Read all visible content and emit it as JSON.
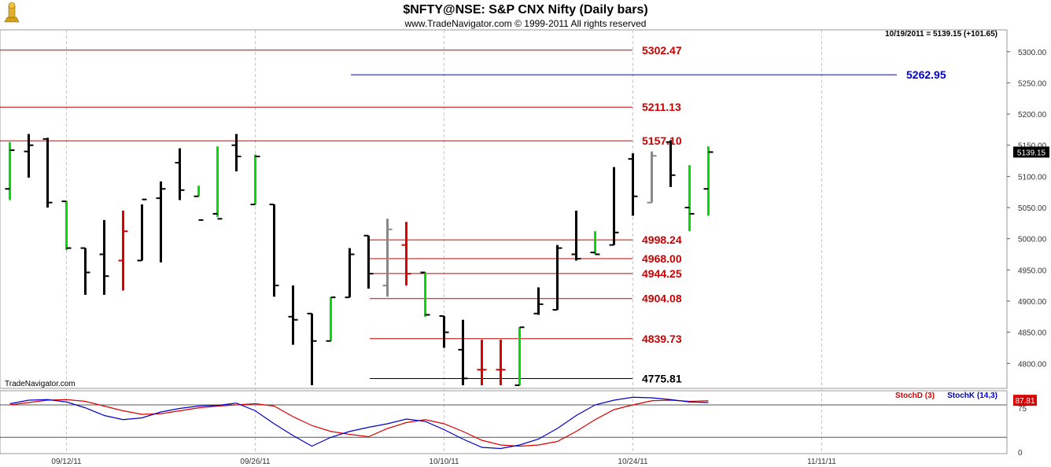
{
  "header": {
    "title": "$NFTY@NSE:  S&P CNX Nifty  (Daily bars)",
    "subtitle": "www.TradeNavigator.com © 1999-2011 All rights reserved",
    "quote": "10/19/2011 = 5139.15 (+101.65)",
    "watermark": "TradeNavigator.com"
  },
  "colors": {
    "up_bar": "#00dd00",
    "down_bar": "#000000",
    "red_bar": "#dd0000",
    "gray_bar": "#888888",
    "resistance_line": "#cc0000",
    "blue_line": "#0000cc",
    "stochD": "#dd0000",
    "stochK": "#0000cc",
    "last_price_box": "#000000",
    "stoch_value_box": "#dd0000"
  },
  "chart_data": [
    {
      "type": "ohlc",
      "name": "price",
      "price_axis": {
        "ticks": [
          "5300.00",
          "5250.00",
          "5200.00",
          "5150.00",
          "5100.00",
          "5050.00",
          "5000.00",
          "4950.00",
          "4900.00",
          "4850.00",
          "4800.00"
        ],
        "ylim": [
          4760,
          5335
        ]
      },
      "date_labels": [
        {
          "idx": 3,
          "label": "09/12/11"
        },
        {
          "idx": 13,
          "label": "09/26/11"
        },
        {
          "idx": 23,
          "label": "10/10/11"
        },
        {
          "idx": 33,
          "label": "10/24/11"
        },
        {
          "idx": 43,
          "label": "11/11/11"
        }
      ],
      "last_price_label": "5139.15",
      "bars": [
        {
          "o": 5080,
          "h": 5155,
          "l": 5062,
          "c": 5142,
          "col": "up"
        },
        {
          "o": 5140,
          "h": 5168,
          "l": 5098,
          "c": 5150,
          "col": "black"
        },
        {
          "o": 5160,
          "h": 5162,
          "l": 5050,
          "c": 5058,
          "col": "black"
        },
        {
          "o": 5060,
          "h": 5060,
          "l": 4982,
          "c": 4985,
          "col": "up"
        },
        {
          "o": 4985,
          "h": 4985,
          "l": 4910,
          "c": 4946,
          "col": "black"
        },
        {
          "o": 4975,
          "h": 5030,
          "l": 4910,
          "c": 4940,
          "col": "black"
        },
        {
          "o": 4965,
          "h": 5045,
          "l": 4917,
          "c": 5012,
          "col": "red"
        },
        {
          "o": 4965,
          "h": 5055,
          "l": 4965,
          "c": 5063,
          "col": "black"
        },
        {
          "o": 5065,
          "h": 5092,
          "l": 4962,
          "c": 5080,
          "col": "black"
        },
        {
          "o": 5122,
          "h": 5145,
          "l": 5062,
          "c": 5078,
          "col": "black"
        },
        {
          "o": 5068,
          "h": 5085,
          "l": 5068,
          "c": 5030,
          "col": "up"
        },
        {
          "o": 5040,
          "h": 5148,
          "l": 5035,
          "c": 5032,
          "col": "up"
        },
        {
          "o": 5150,
          "h": 5168,
          "l": 5108,
          "c": 5132,
          "col": "black"
        },
        {
          "o": 5055,
          "h": 5135,
          "l": 5055,
          "c": 5132,
          "col": "up"
        },
        {
          "o": 5055,
          "h": 5055,
          "l": 4907,
          "c": 4925,
          "col": "black"
        },
        {
          "o": 4875,
          "h": 4925,
          "l": 4830,
          "c": 4870,
          "col": "black"
        },
        {
          "o": 4880,
          "h": 4880,
          "l": 4765,
          "c": 4836,
          "col": "black"
        },
        {
          "o": 4836,
          "h": 4906,
          "l": 4836,
          "c": 4906,
          "col": "up"
        },
        {
          "o": 4906,
          "h": 4985,
          "l": 4906,
          "c": 4975,
          "col": "black"
        },
        {
          "o": 5005,
          "h": 5005,
          "l": 4920,
          "c": 4944,
          "col": "black"
        },
        {
          "o": 4925,
          "h": 5032,
          "l": 4907,
          "c": 5015,
          "col": "gray"
        },
        {
          "o": 4990,
          "h": 5027,
          "l": 4925,
          "c": 4944,
          "col": "red"
        },
        {
          "o": 4946,
          "h": 4946,
          "l": 4875,
          "c": 4878,
          "col": "up"
        },
        {
          "o": 4876,
          "h": 4876,
          "l": 4825,
          "c": 4850,
          "col": "black"
        },
        {
          "o": 4822,
          "h": 4870,
          "l": 4765,
          "c": 4776,
          "col": "black"
        },
        {
          "o": 4790,
          "h": 4838,
          "l": 4765,
          "c": 4790,
          "col": "red"
        },
        {
          "o": 4790,
          "h": 4838,
          "l": 4765,
          "c": 4790,
          "col": "red"
        },
        {
          "o": 4765,
          "h": 4858,
          "l": 4765,
          "c": 4858,
          "col": "up"
        },
        {
          "o": 4880,
          "h": 4922,
          "l": 4878,
          "c": 4895,
          "col": "black"
        },
        {
          "o": 4886,
          "h": 4990,
          "l": 4886,
          "c": 4985,
          "col": "black"
        },
        {
          "o": 4975,
          "h": 5045,
          "l": 4965,
          "c": 4968,
          "col": "black"
        },
        {
          "o": 4978,
          "h": 5012,
          "l": 4975,
          "c": 4975,
          "col": "up"
        },
        {
          "o": 4990,
          "h": 5115,
          "l": 4990,
          "c": 5010,
          "col": "black"
        },
        {
          "o": 5128,
          "h": 5137,
          "l": 5037,
          "c": 5068,
          "col": "black"
        },
        {
          "o": 5058,
          "h": 5140,
          "l": 5058,
          "c": 5133,
          "col": "gray"
        },
        {
          "o": 5155,
          "h": 5158,
          "l": 5083,
          "c": 5102,
          "col": "black"
        },
        {
          "o": 5050,
          "h": 5118,
          "l": 5012,
          "c": 5040,
          "col": "up"
        },
        {
          "o": 5080,
          "h": 5148,
          "l": 5037,
          "c": 5139,
          "col": "up"
        }
      ],
      "levels": [
        {
          "value": 5302.47,
          "label": "5302.47",
          "color": "red",
          "span": "full"
        },
        {
          "value": 5262.95,
          "label": "5262.95",
          "color": "blue",
          "span": "partial"
        },
        {
          "value": 5211.13,
          "label": "5211.13",
          "color": "red",
          "span": "full"
        },
        {
          "value": 5157.1,
          "label": "5157.10",
          "color": "red",
          "span": "full"
        },
        {
          "value": 4998.24,
          "label": "4998.24",
          "color": "red",
          "span": "right"
        },
        {
          "value": 4968.0,
          "label": "4968.00",
          "color": "red",
          "span": "right"
        },
        {
          "value": 4944.25,
          "label": "4944.25",
          "color": "red",
          "span": "right"
        },
        {
          "value": 4904.08,
          "label": "4904.08",
          "color": "red",
          "span": "right"
        },
        {
          "value": 4839.73,
          "label": "4839.73",
          "color": "red",
          "span": "right"
        },
        {
          "value": 4775.81,
          "label": "4775.81",
          "color": "black",
          "span": "short"
        }
      ]
    },
    {
      "type": "line",
      "name": "stochastic",
      "ylim": [
        0,
        100
      ],
      "ticks": [
        "75",
        "0"
      ],
      "last_value_label": "87.81",
      "reference_lines": [
        25,
        80
      ],
      "legend": [
        "StochD (3)",
        "StochK (14,3)"
      ],
      "series": [
        {
          "name": "StochD (3)",
          "values": [
            80,
            84,
            88,
            89,
            86,
            78,
            70,
            64,
            65,
            70,
            75,
            78,
            80,
            82,
            78,
            60,
            45,
            35,
            30,
            26,
            40,
            50,
            55,
            48,
            35,
            20,
            12,
            10,
            12,
            18,
            35,
            55,
            72,
            80,
            87,
            88,
            86,
            87
          ]
        },
        {
          "name": "StochK (14,3)",
          "values": [
            82,
            88,
            89,
            85,
            75,
            62,
            55,
            58,
            68,
            74,
            78,
            79,
            83,
            70,
            48,
            28,
            10,
            25,
            35,
            42,
            48,
            56,
            52,
            38,
            22,
            8,
            6,
            12,
            22,
            40,
            62,
            80,
            88,
            93,
            92,
            89,
            85,
            84
          ]
        }
      ]
    }
  ]
}
